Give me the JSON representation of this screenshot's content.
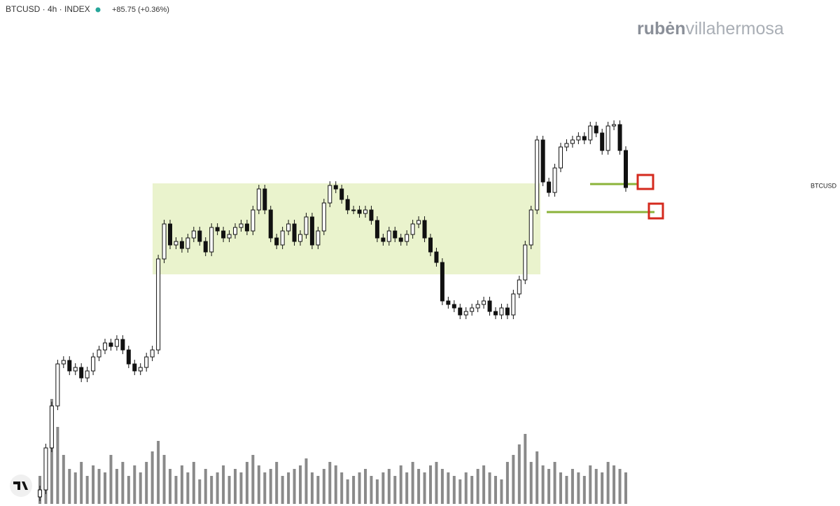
{
  "chart_data": {
    "type": "candlestick",
    "title": "BTCUSD · 4h · INDEX",
    "change": "+85.75 (+0.36%)",
    "brand_bold": "rubėn",
    "brand_light": "villahermosa",
    "symbol_label": "BTCUSD",
    "up_color": "#ffffff",
    "down_color": "#111111",
    "volume_color": "#8a8a8a",
    "ylim": [
      0,
      723
    ],
    "volume_ylim": [
      0,
      160
    ],
    "open": [
      13,
      23,
      83,
      143,
      203,
      208,
      193,
      198,
      183,
      193,
      213,
      223,
      233,
      228,
      238,
      223,
      203,
      193,
      198,
      213,
      223,
      353,
      403,
      373,
      378,
      368,
      383,
      393,
      378,
      363,
      398,
      393,
      383,
      388,
      398,
      403,
      393,
      423,
      453,
      423,
      383,
      373,
      393,
      403,
      378,
      388,
      413,
      373,
      393,
      433,
      458,
      453,
      438,
      423,
      423,
      418,
      423,
      408,
      383,
      378,
      393,
      383,
      378,
      388,
      403,
      408,
      383,
      363,
      348,
      293,
      288,
      283,
      273,
      278,
      283,
      288,
      293,
      278,
      273,
      283,
      273,
      303,
      323,
      373,
      423,
      523,
      463,
      448,
      483,
      513,
      518,
      523,
      528,
      523,
      543,
      533,
      508,
      543,
      545,
      508
    ],
    "high": [
      29,
      89,
      149,
      209,
      214,
      214,
      204,
      204,
      199,
      219,
      229,
      239,
      239,
      244,
      244,
      229,
      209,
      204,
      219,
      229,
      359,
      409,
      409,
      384,
      384,
      389,
      399,
      399,
      384,
      404,
      404,
      399,
      394,
      404,
      409,
      409,
      429,
      459,
      459,
      429,
      389,
      399,
      409,
      409,
      394,
      419,
      419,
      399,
      439,
      464,
      464,
      459,
      444,
      429,
      429,
      429,
      429,
      414,
      389,
      399,
      399,
      389,
      394,
      409,
      414,
      414,
      389,
      369,
      354,
      299,
      294,
      289,
      284,
      289,
      294,
      299,
      299,
      284,
      289,
      289,
      309,
      329,
      379,
      429,
      529,
      529,
      469,
      489,
      519,
      524,
      529,
      534,
      534,
      549,
      549,
      539,
      549,
      551,
      551,
      514
    ],
    "low": [
      7,
      17,
      77,
      137,
      197,
      187,
      187,
      177,
      177,
      187,
      207,
      217,
      222,
      222,
      217,
      197,
      187,
      187,
      192,
      207,
      217,
      347,
      367,
      367,
      362,
      362,
      377,
      372,
      357,
      357,
      387,
      377,
      377,
      382,
      392,
      387,
      387,
      417,
      417,
      377,
      367,
      367,
      387,
      372,
      372,
      382,
      367,
      367,
      387,
      427,
      447,
      432,
      417,
      417,
      412,
      412,
      402,
      377,
      372,
      372,
      377,
      372,
      372,
      382,
      397,
      377,
      357,
      342,
      287,
      282,
      277,
      267,
      267,
      272,
      277,
      282,
      272,
      267,
      267,
      267,
      267,
      297,
      317,
      367,
      417,
      457,
      442,
      442,
      477,
      507,
      512,
      517,
      517,
      517,
      527,
      502,
      502,
      537,
      502,
      449
    ],
    "close": [
      23,
      83,
      143,
      203,
      208,
      193,
      198,
      183,
      193,
      213,
      223,
      233,
      228,
      238,
      223,
      203,
      193,
      198,
      213,
      223,
      353,
      403,
      373,
      378,
      368,
      383,
      393,
      378,
      363,
      398,
      393,
      383,
      388,
      398,
      403,
      393,
      423,
      453,
      423,
      383,
      373,
      393,
      403,
      378,
      388,
      413,
      373,
      393,
      433,
      458,
      453,
      438,
      423,
      423,
      418,
      423,
      408,
      383,
      378,
      393,
      383,
      378,
      388,
      403,
      408,
      383,
      363,
      348,
      293,
      288,
      283,
      273,
      278,
      283,
      288,
      293,
      278,
      273,
      283,
      273,
      303,
      323,
      373,
      423,
      523,
      463,
      448,
      483,
      513,
      518,
      523,
      528,
      523,
      543,
      533,
      508,
      543,
      545,
      508,
      455
    ],
    "volume": [
      40,
      60,
      150,
      110,
      70,
      50,
      45,
      60,
      40,
      55,
      50,
      45,
      70,
      50,
      60,
      40,
      55,
      45,
      60,
      75,
      90,
      70,
      50,
      40,
      55,
      45,
      60,
      35,
      50,
      40,
      45,
      55,
      40,
      50,
      45,
      60,
      70,
      55,
      45,
      50,
      60,
      40,
      45,
      50,
      55,
      65,
      45,
      40,
      50,
      60,
      55,
      45,
      35,
      40,
      45,
      50,
      40,
      35,
      45,
      50,
      40,
      55,
      45,
      60,
      50,
      45,
      55,
      60,
      50,
      45,
      40,
      35,
      45,
      40,
      50,
      55,
      45,
      40,
      35,
      60,
      70,
      85,
      100,
      60,
      75,
      55,
      50,
      60,
      45,
      40,
      50,
      45,
      40,
      55,
      50,
      45,
      60,
      55,
      50,
      45
    ]
  }
}
